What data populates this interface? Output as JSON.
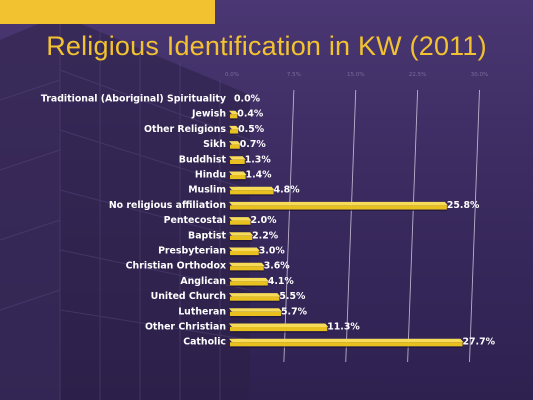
{
  "slide": {
    "title": "Religious Identification in KW (2011)",
    "accent_color": "#f2c230",
    "background_color": "#3b2b60",
    "bar_color": "#e8c020"
  },
  "chart_data": {
    "type": "bar",
    "orientation": "horizontal",
    "title": "Religious Identification in KW (2011)",
    "xlabel": "",
    "ylabel": "",
    "xlim": [
      0,
      30
    ],
    "grid": true,
    "legend": "none",
    "tick_labels": [
      "0.0%",
      "7.5%",
      "15.0%",
      "22.5%",
      "30.0%"
    ],
    "categories": [
      "Traditional (Aboriginal) Spirituality",
      "Jewish",
      "Other Religions",
      "Sikh",
      "Buddhist",
      "Hindu",
      "Muslim",
      "No religious affiliation",
      "Pentecostal",
      "Baptist",
      "Presbyterian",
      "Christian Orthodox",
      "Anglican",
      "United Church",
      "Lutheran",
      "Other Christian",
      "Catholic"
    ],
    "values": [
      0.0,
      0.4,
      0.5,
      0.7,
      1.3,
      1.4,
      4.8,
      25.8,
      2.0,
      2.2,
      3.0,
      3.6,
      4.1,
      5.5,
      5.7,
      11.3,
      27.7
    ],
    "value_labels": [
      "0.0%",
      "0.4%",
      "0.5%",
      "0.7%",
      "1.3%",
      "1.4%",
      "4.8%",
      "25.8%",
      "2.0%",
      "2.2%",
      "3.0%",
      "3.6%",
      "4.1%",
      "5.5%",
      "5.7%",
      "11.3%",
      "27.7%"
    ]
  }
}
